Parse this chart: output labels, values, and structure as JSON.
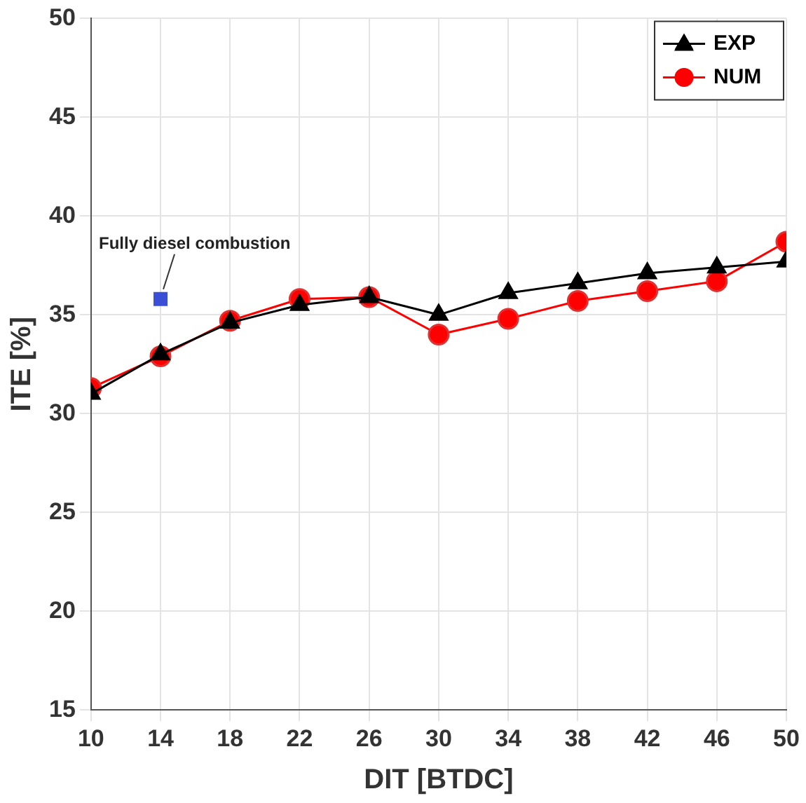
{
  "chart_data": {
    "type": "line",
    "xlabel": "DIT [BTDC]",
    "ylabel": "ITE [%]",
    "x": [
      10,
      14,
      18,
      22,
      26,
      30,
      34,
      38,
      42,
      46,
      50
    ],
    "series": [
      {
        "name": "EXP",
        "color": "#000000",
        "marker": "triangle",
        "values": [
          31.0,
          33.0,
          34.6,
          35.5,
          35.9,
          35.0,
          36.1,
          36.6,
          37.1,
          37.4,
          37.7
        ]
      },
      {
        "name": "NUM",
        "color": "#ff0000",
        "marker": "circle",
        "values": [
          31.3,
          32.9,
          34.7,
          35.8,
          35.9,
          34.0,
          34.8,
          35.7,
          36.2,
          36.7,
          38.7
        ]
      },
      {
        "type": "scatter",
        "color": "#3b4fd6",
        "marker": "square",
        "x": [
          14
        ],
        "values": [
          35.8
        ]
      }
    ],
    "annotations": [
      {
        "text": "Fully diesel combustion",
        "x": 14,
        "y": 35.8
      }
    ],
    "xlim": [
      10,
      50
    ],
    "xticks": [
      10,
      14,
      18,
      22,
      26,
      30,
      34,
      38,
      42,
      46,
      50
    ],
    "ylim": [
      15,
      50
    ],
    "yticks": [
      15,
      20,
      25,
      30,
      35,
      40,
      45,
      50
    ],
    "grid": true,
    "legend": "top right"
  }
}
